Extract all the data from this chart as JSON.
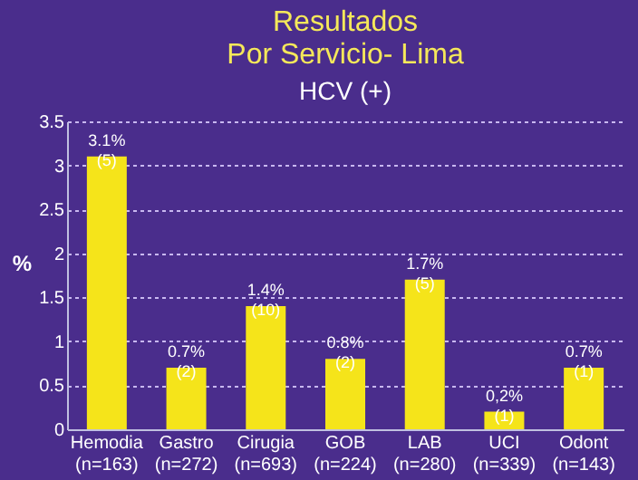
{
  "chart_data": {
    "type": "bar",
    "title": "Resultados",
    "subtitle": "Por Servicio- Lima",
    "annotations": [
      "HCV (+)"
    ],
    "ylabel": "%",
    "categories": [
      "Hemodia\n(n=163)",
      "Gastro\n(n=272)",
      "Cirugia\n(n=693)",
      "GOB\n(n=224)",
      "LAB\n(n=280)",
      "UCI\n(n=339)",
      "Odont\n(n=143)"
    ],
    "values": [
      3.1,
      0.7,
      1.4,
      0.8,
      1.7,
      0.2,
      0.7
    ],
    "value_labels": [
      "3.1%\n(5)",
      "0.7%\n(2)",
      "1.4%\n(10)",
      "0.8%\n(2)",
      "1.7%\n(5)",
      "0,2%\n(1)",
      "0.7%\n(1)"
    ],
    "color": "#f5e41a",
    "ylim": [
      0,
      3.5
    ],
    "yticks": [
      0,
      0.5,
      1,
      1.5,
      2,
      2.5,
      3,
      3.5
    ],
    "grid": "y"
  }
}
